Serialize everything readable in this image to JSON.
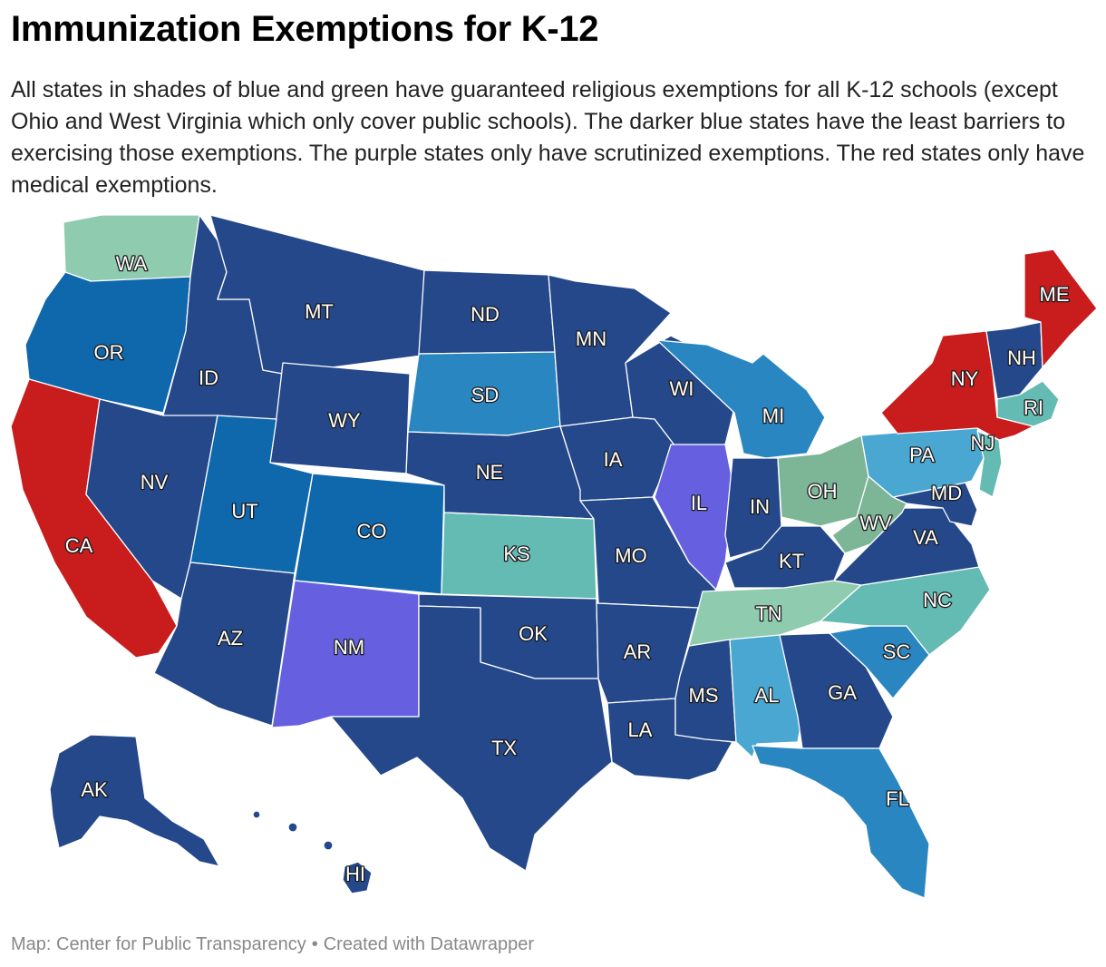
{
  "title": "Immunization Exemptions for K-12",
  "subtitle": "All states in shades of blue and green have guaranteed religious exemptions for all K-12 schools (except Ohio and West Virginia which only cover public schools). The darker blue states have the least barriers to exercising those exemptions. The purple states only have scrutinized exemptions. The red states only have medical exemptions.",
  "footer": {
    "source": "Map: Center for Public Transparency",
    "separator": "•",
    "credit": "Created with Datawrapper"
  },
  "colors": {
    "dark_blue": "#24488a",
    "medium_blue": "#0f67ac",
    "blue": "#2a86c1",
    "light_blue": "#4aa7d2",
    "teal": "#64bbb3",
    "light_green": "#8fcbae",
    "sage": "#7db597",
    "purple": "#6660e0",
    "red": "#c81d1c"
  },
  "states": [
    {
      "abbr": "WA",
      "color": "light_green"
    },
    {
      "abbr": "OR",
      "color": "medium_blue"
    },
    {
      "abbr": "CA",
      "color": "red"
    },
    {
      "abbr": "ID",
      "color": "dark_blue"
    },
    {
      "abbr": "NV",
      "color": "dark_blue"
    },
    {
      "abbr": "MT",
      "color": "dark_blue"
    },
    {
      "abbr": "WY",
      "color": "dark_blue"
    },
    {
      "abbr": "UT",
      "color": "medium_blue"
    },
    {
      "abbr": "AZ",
      "color": "dark_blue"
    },
    {
      "abbr": "CO",
      "color": "medium_blue"
    },
    {
      "abbr": "NM",
      "color": "purple"
    },
    {
      "abbr": "ND",
      "color": "dark_blue"
    },
    {
      "abbr": "SD",
      "color": "blue"
    },
    {
      "abbr": "NE",
      "color": "dark_blue"
    },
    {
      "abbr": "KS",
      "color": "teal"
    },
    {
      "abbr": "OK",
      "color": "dark_blue"
    },
    {
      "abbr": "TX",
      "color": "dark_blue"
    },
    {
      "abbr": "MN",
      "color": "dark_blue"
    },
    {
      "abbr": "IA",
      "color": "dark_blue"
    },
    {
      "abbr": "MO",
      "color": "dark_blue"
    },
    {
      "abbr": "AR",
      "color": "dark_blue"
    },
    {
      "abbr": "LA",
      "color": "dark_blue"
    },
    {
      "abbr": "WI",
      "color": "dark_blue"
    },
    {
      "abbr": "IL",
      "color": "purple"
    },
    {
      "abbr": "MI",
      "color": "blue"
    },
    {
      "abbr": "IN",
      "color": "dark_blue"
    },
    {
      "abbr": "OH",
      "color": "sage"
    },
    {
      "abbr": "KT",
      "color": "dark_blue"
    },
    {
      "abbr": "TN",
      "color": "light_green"
    },
    {
      "abbr": "MS",
      "color": "dark_blue"
    },
    {
      "abbr": "AL",
      "color": "light_blue"
    },
    {
      "abbr": "GA",
      "color": "dark_blue"
    },
    {
      "abbr": "FL",
      "color": "blue"
    },
    {
      "abbr": "SC",
      "color": "blue"
    },
    {
      "abbr": "NC",
      "color": "teal"
    },
    {
      "abbr": "VA",
      "color": "dark_blue"
    },
    {
      "abbr": "WV",
      "color": "sage"
    },
    {
      "abbr": "MD",
      "color": "dark_blue"
    },
    {
      "abbr": "PA",
      "color": "light_blue"
    },
    {
      "abbr": "NJ",
      "color": "teal"
    },
    {
      "abbr": "NY",
      "color": "red"
    },
    {
      "abbr": "NH",
      "color": "dark_blue"
    },
    {
      "abbr": "ME",
      "color": "red"
    },
    {
      "abbr": "RI",
      "color": "teal"
    },
    {
      "abbr": "AK",
      "color": "dark_blue"
    },
    {
      "abbr": "HI",
      "color": "dark_blue"
    }
  ]
}
